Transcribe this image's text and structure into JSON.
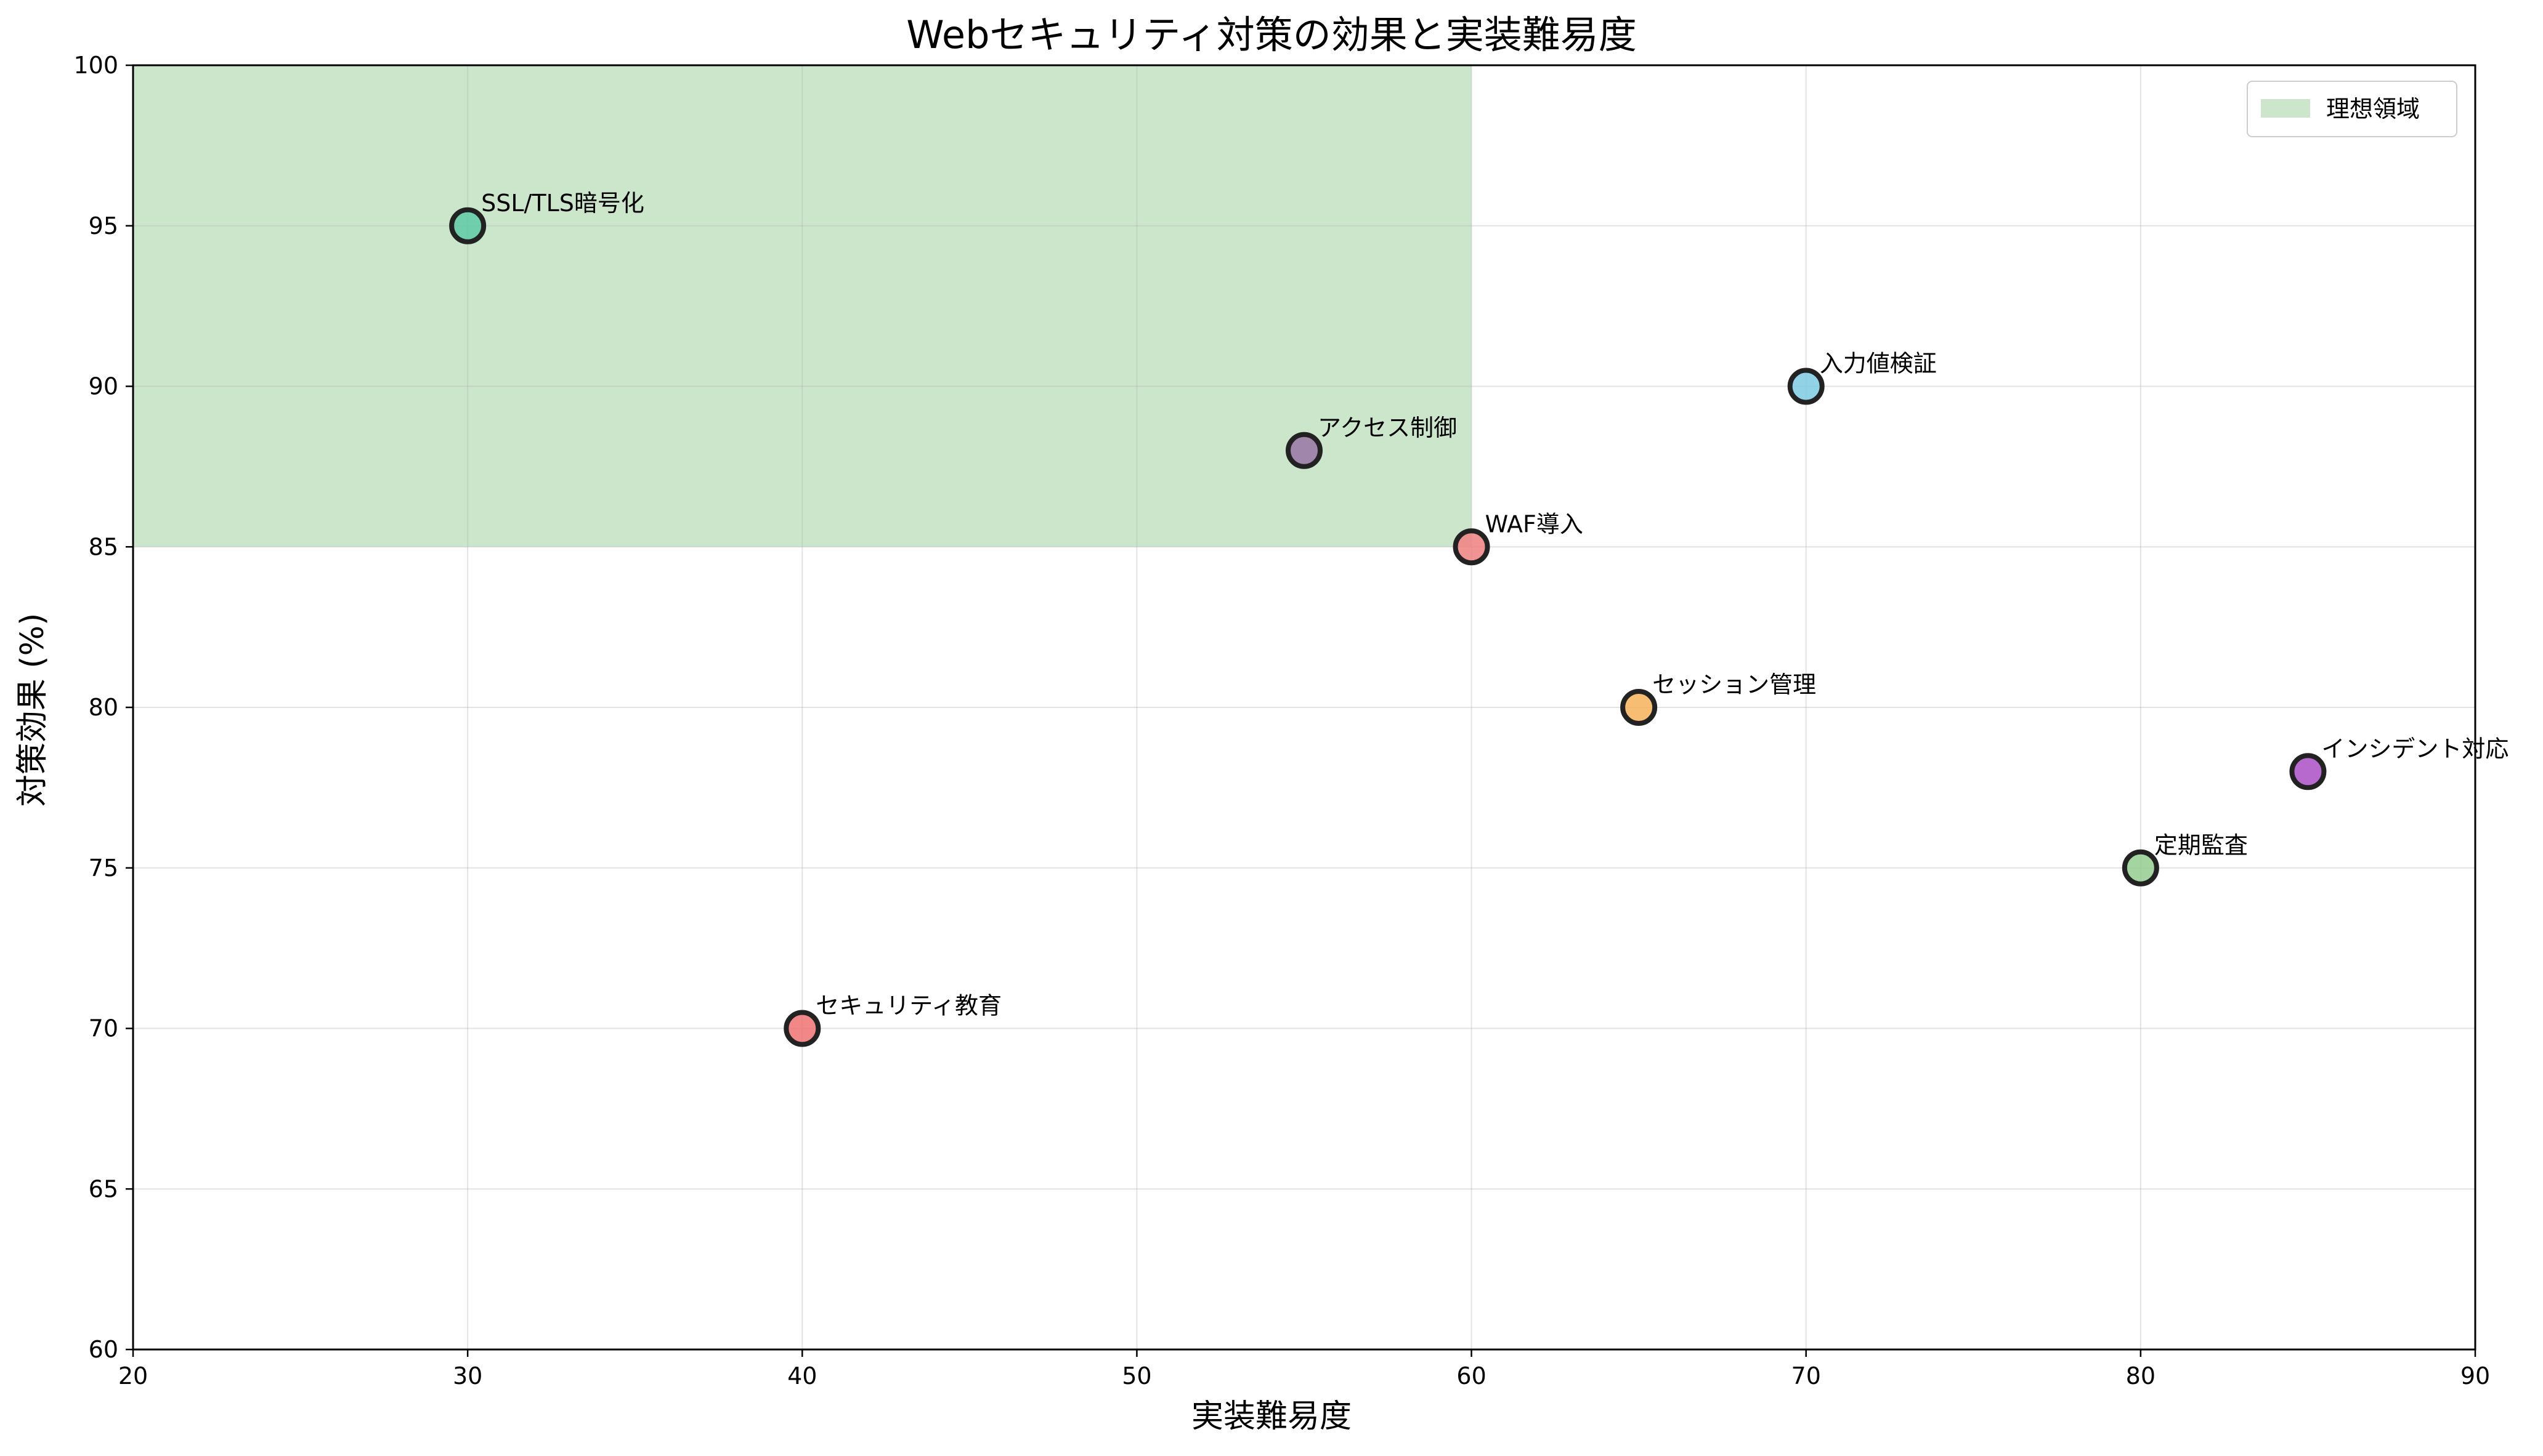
{
  "chart_data": {
    "type": "scatter",
    "title": "Webセキュリティ対策の効果と実装難易度",
    "xlabel": "実装難易度",
    "ylabel": "対策効果 (%)",
    "xlim": [
      20,
      90
    ],
    "ylim": [
      60,
      100
    ],
    "xticks": [
      "20",
      "30",
      "40",
      "50",
      "60",
      "70",
      "80",
      "90"
    ],
    "yticks": [
      "60",
      "65",
      "70",
      "75",
      "80",
      "85",
      "90",
      "95",
      "100"
    ],
    "grid": true,
    "ideal_region": {
      "label": "理想領域",
      "x": [
        20,
        60
      ],
      "y": [
        85,
        100
      ],
      "color": "#a3d2a3"
    },
    "legend_placement": "top-right",
    "points": [
      {
        "label": "SSL/TLS暗号化",
        "x": 30,
        "y": 95,
        "color": "#5ec9a6"
      },
      {
        "label": "セキュリティ教育",
        "x": 40,
        "y": 70,
        "color": "#f07272"
      },
      {
        "label": "アクセス制御",
        "x": 55,
        "y": 88,
        "color": "#9674a3"
      },
      {
        "label": "WAF導入",
        "x": 60,
        "y": 85,
        "color": "#f08080"
      },
      {
        "label": "セッション管理",
        "x": 65,
        "y": 80,
        "color": "#f5b25b"
      },
      {
        "label": "入力値検証",
        "x": 70,
        "y": 90,
        "color": "#7ecae3"
      },
      {
        "label": "定期監査",
        "x": 80,
        "y": 75,
        "color": "#94cc8f"
      },
      {
        "label": "インシデント対応",
        "x": 85,
        "y": 78,
        "color": "#ac4fc6"
      }
    ]
  }
}
